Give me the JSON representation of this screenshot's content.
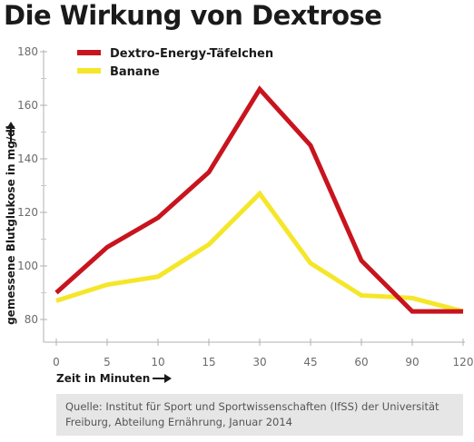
{
  "chart_data": {
    "type": "line",
    "title": "Die Wirkung von Dextrose",
    "xlabel": "Zeit in Minuten",
    "ylabel": "gemessene Blutglukose in mg/dl",
    "categories": [
      "0",
      "5",
      "10",
      "15",
      "30",
      "45",
      "60",
      "90",
      "120"
    ],
    "yticks": [
      80,
      100,
      120,
      140,
      160,
      180
    ],
    "ylim": [
      75,
      180
    ],
    "grid": false,
    "legend_position": "top-left",
    "series": [
      {
        "name": "Dextro-Energy-Täfelchen",
        "color": "#c8141e",
        "values": [
          90,
          107,
          118,
          135,
          166,
          145,
          102,
          83,
          83
        ]
      },
      {
        "name": "Banane",
        "color": "#f5e62a",
        "values": [
          87,
          93,
          96,
          108,
          127,
          101,
          89,
          88,
          83
        ]
      }
    ],
    "source": "Quelle: Institut für Sport und Sportwissenschaften (IfSS) der Universität Freiburg, Abteilung Ernährung, Januar 2014"
  }
}
